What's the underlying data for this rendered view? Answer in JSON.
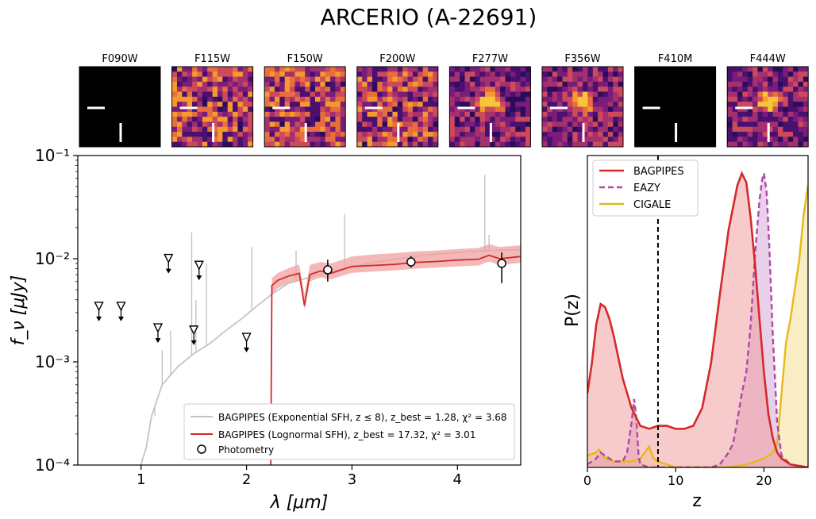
{
  "title": "ARCERIO (A-22691)",
  "colors": {
    "sed_grey": "#c4c4c4",
    "sed_red": "#d42a2a",
    "band_red": "#f0a0a0",
    "bagpipes": "#d42a2a",
    "eazy": "#b04aa4",
    "cigale": "#e8b81a",
    "cutout_black": "#000000",
    "cutout_dark": "#3a0d6a",
    "cutout_mid": "#c23a6f",
    "cutout_bright": "#f6a53a"
  },
  "cutouts": [
    {
      "filter": "F090W",
      "style": "black"
    },
    {
      "filter": "F115W",
      "style": "noise"
    },
    {
      "filter": "F150W",
      "style": "noise"
    },
    {
      "filter": "F200W",
      "style": "noise"
    },
    {
      "filter": "F277W",
      "style": "source"
    },
    {
      "filter": "F356W",
      "style": "source"
    },
    {
      "filter": "F410M",
      "style": "black"
    },
    {
      "filter": "F444W",
      "style": "source"
    }
  ],
  "chart_data": [
    {
      "type": "line",
      "name": "sed",
      "xlabel": "λ [μm]",
      "ylabel": "f_ν [μJy]",
      "x_ticks": [
        "1",
        "2",
        "3",
        "4"
      ],
      "y_ticks": [
        "10⁻⁴",
        "10⁻³",
        "10⁻²",
        "10⁻¹"
      ],
      "xlim": [
        0.4,
        4.6
      ],
      "ylim_log10": [
        -4,
        -1
      ],
      "yscale": "log",
      "legend_position": "lower-right",
      "legend": [
        "BAGPIPES (Exponential SFH, z ≤ 8), z_best = 1.28, χ² = 3.68",
        "BAGPIPES (Lognormal SFH), z_best = 17.32, χ² = 3.01",
        "Photometry"
      ],
      "series": [
        {
          "name": "BAGPIPES (Exponential SFH, z ≤ 8)",
          "color": "#c4c4c4",
          "x": [
            0.97,
            1.05,
            1.1,
            1.2,
            1.35,
            1.5,
            1.65,
            1.8,
            1.95,
            2.1,
            2.25,
            2.4,
            2.6,
            2.8,
            3.0,
            3.2,
            3.5,
            3.8,
            4.1,
            4.4,
            4.6
          ],
          "y": [
            8e-05,
            0.00015,
            0.0003,
            0.0006,
            0.0009,
            0.0012,
            0.0015,
            0.002,
            0.0026,
            0.0035,
            0.0046,
            0.0058,
            0.0066,
            0.0075,
            0.0083,
            0.0092,
            0.0102,
            0.0111,
            0.0117,
            0.0121,
            0.0122
          ],
          "emission_lines": [
            {
              "x": 1.13,
              "y": 0.0003
            },
            {
              "x": 1.2,
              "y": 0.0013
            },
            {
              "x": 1.28,
              "y": 0.002
            },
            {
              "x": 1.48,
              "y": 0.018
            },
            {
              "x": 1.52,
              "y": 0.004
            },
            {
              "x": 1.62,
              "y": 0.009
            },
            {
              "x": 2.05,
              "y": 0.013
            },
            {
              "x": 2.47,
              "y": 0.012
            },
            {
              "x": 2.93,
              "y": 0.027
            },
            {
              "x": 4.26,
              "y": 0.065
            },
            {
              "x": 4.3,
              "y": 0.017
            }
          ]
        },
        {
          "name": "BAGPIPES (Lognormal SFH)",
          "color": "#d42a2a",
          "x": [
            2.23,
            2.24,
            2.3,
            2.4,
            2.5,
            2.55,
            2.6,
            2.7,
            2.8,
            2.9,
            3.0,
            3.2,
            3.4,
            3.6,
            3.8,
            4.0,
            4.2,
            4.3,
            4.4,
            4.6
          ],
          "y": [
            0.0001,
            0.0055,
            0.0062,
            0.0068,
            0.0072,
            0.0035,
            0.007,
            0.0076,
            0.0072,
            0.0078,
            0.0084,
            0.0086,
            0.0088,
            0.0092,
            0.0094,
            0.0097,
            0.0099,
            0.0108,
            0.01,
            0.0105
          ],
          "band_low": [
            0.0001,
            0.0045,
            0.0052,
            0.0058,
            0.0062,
            0.0032,
            0.006,
            0.0066,
            0.0063,
            0.0068,
            0.0073,
            0.0075,
            0.0077,
            0.008,
            0.0082,
            0.0084,
            0.0086,
            0.0094,
            0.0087,
            0.0091
          ],
          "band_high": [
            0.0001,
            0.0065,
            0.0073,
            0.0081,
            0.0088,
            0.0045,
            0.0087,
            0.0093,
            0.009,
            0.0097,
            0.0105,
            0.011,
            0.0113,
            0.0118,
            0.012,
            0.0124,
            0.0127,
            0.0138,
            0.013,
            0.0135
          ]
        }
      ],
      "upper_limits": [
        {
          "x": 0.6,
          "y": 0.0034
        },
        {
          "x": 0.81,
          "y": 0.0034
        },
        {
          "x": 1.16,
          "y": 0.0021
        },
        {
          "x": 1.26,
          "y": 0.0099
        },
        {
          "x": 1.5,
          "y": 0.002
        },
        {
          "x": 1.55,
          "y": 0.0085
        },
        {
          "x": 2.0,
          "y": 0.0017
        }
      ],
      "photometry": [
        {
          "x": 2.77,
          "y": 0.0078,
          "err_low": 0.006,
          "err_high": 0.0098
        },
        {
          "x": 3.56,
          "y": 0.0093,
          "err_low": 0.0082,
          "err_high": 0.0106
        },
        {
          "x": 4.42,
          "y": 0.009,
          "err_low": 0.0058,
          "err_high": 0.0115
        }
      ]
    },
    {
      "type": "area",
      "name": "pz",
      "xlabel": "z",
      "ylabel": "P(z)",
      "x_ticks": [
        "0",
        "10",
        "20"
      ],
      "xlim": [
        0,
        25
      ],
      "ylim": [
        0,
        1.05
      ],
      "vline_x": 8,
      "legend_position": "top-left",
      "legend": [
        "BAGPIPES",
        "EAZY",
        "CIGALE"
      ],
      "series": [
        {
          "name": "BAGPIPES",
          "color": "#d42a2a",
          "x": [
            0,
            0.5,
            1,
            1.5,
            2,
            2.5,
            3,
            4,
            5,
            6,
            7,
            8,
            9,
            10,
            11,
            12,
            13,
            14,
            15,
            16,
            17,
            17.5,
            18,
            18.5,
            19,
            19.5,
            20,
            20.5,
            21,
            21.5,
            22,
            23,
            25
          ],
          "y": [
            0.25,
            0.35,
            0.48,
            0.55,
            0.54,
            0.5,
            0.44,
            0.3,
            0.2,
            0.14,
            0.13,
            0.14,
            0.14,
            0.13,
            0.13,
            0.14,
            0.2,
            0.35,
            0.58,
            0.8,
            0.95,
            0.99,
            0.96,
            0.84,
            0.68,
            0.5,
            0.32,
            0.18,
            0.1,
            0.05,
            0.03,
            0.01,
            0.0
          ]
        },
        {
          "name": "EAZY",
          "color": "#b04aa4",
          "x": [
            0,
            1,
            1.5,
            2,
            3,
            4,
            4.5,
            5,
            5.3,
            5.5,
            5.8,
            6,
            7,
            8,
            10,
            12,
            14,
            15,
            16,
            16.5,
            17,
            17.5,
            18,
            18.5,
            19,
            19.5,
            19.8,
            20,
            20.3,
            20.6,
            21,
            21.5,
            22,
            23,
            25
          ],
          "y": [
            0.01,
            0.03,
            0.05,
            0.04,
            0.02,
            0.02,
            0.05,
            0.15,
            0.23,
            0.18,
            0.04,
            0.01,
            0.0,
            0.0,
            0.0,
            0.0,
            0.0,
            0.01,
            0.05,
            0.08,
            0.16,
            0.25,
            0.32,
            0.48,
            0.72,
            0.9,
            0.97,
            0.99,
            0.93,
            0.75,
            0.45,
            0.15,
            0.04,
            0.01,
            0.0
          ]
        },
        {
          "name": "CIGALE",
          "color": "#e8b81a",
          "x": [
            0,
            1,
            1.3,
            2,
            3,
            4,
            5,
            6,
            7,
            7.5,
            8,
            9,
            10,
            14,
            16,
            18,
            19,
            20,
            21,
            21.5,
            22,
            22.5,
            23,
            23.5,
            24,
            24.5,
            25
          ],
          "y": [
            0.04,
            0.05,
            0.06,
            0.03,
            0.02,
            0.02,
            0.02,
            0.03,
            0.07,
            0.03,
            0.02,
            0.01,
            0.0,
            0.0,
            0.0,
            0.01,
            0.02,
            0.03,
            0.05,
            0.08,
            0.25,
            0.42,
            0.5,
            0.6,
            0.7,
            0.85,
            0.95
          ]
        }
      ]
    }
  ]
}
